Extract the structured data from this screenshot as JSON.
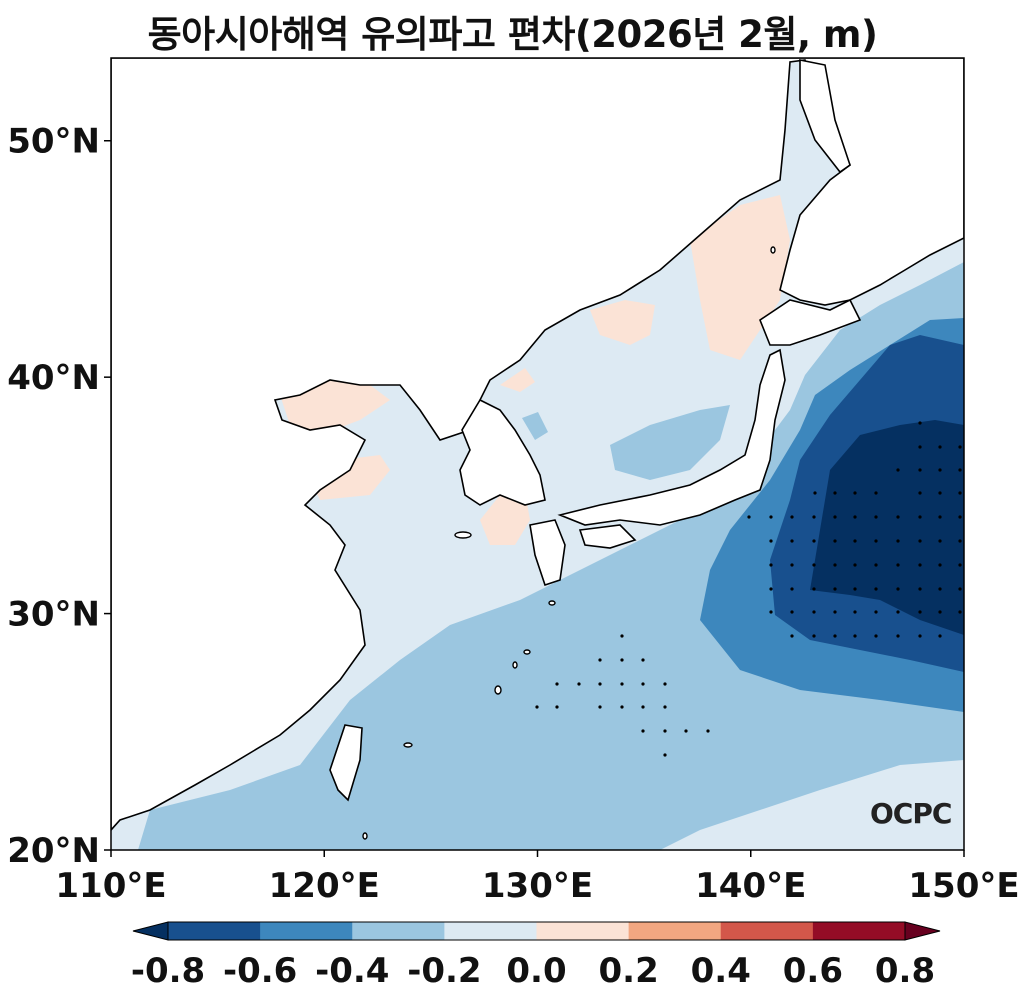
{
  "title": "동아시아해역 유의파고 편차(2026년 2월, m)",
  "logo": "OCPC",
  "map": {
    "region": "East Asian seas",
    "lon_range": [
      110,
      150
    ],
    "lat_range": [
      20,
      53.5
    ],
    "x_ticks": [
      {
        "lon": 110,
        "label": "110°E"
      },
      {
        "lon": 120,
        "label": "120°E"
      },
      {
        "lon": 130,
        "label": "130°E"
      },
      {
        "lon": 140,
        "label": "140°E"
      },
      {
        "lon": 150,
        "label": "150°E"
      }
    ],
    "y_ticks": [
      {
        "lat": 20,
        "label": "20°N"
      },
      {
        "lat": 30,
        "label": "30°N"
      },
      {
        "lat": 40,
        "label": "40°N"
      },
      {
        "lat": 50,
        "label": "50°N"
      }
    ],
    "land_color": "#ffffff",
    "coastline_color": "#000000",
    "significance_marker": "stippling (dots)"
  },
  "colorbar": {
    "levels": [
      -0.8,
      -0.6,
      -0.4,
      -0.2,
      0.0,
      0.2,
      0.4,
      0.6,
      0.8
    ],
    "labels": [
      "-0.8",
      "-0.6",
      "-0.4",
      "-0.2",
      "0.0",
      "0.2",
      "0.4",
      "0.6",
      "0.8"
    ],
    "colors": [
      "#053061",
      "#18508e",
      "#3d87bd",
      "#9bc6e0",
      "#ddeaf3",
      "#fbe3d6",
      "#f2a781",
      "#d3574a",
      "#940c26",
      "#67001f"
    ],
    "extend": "both"
  }
}
